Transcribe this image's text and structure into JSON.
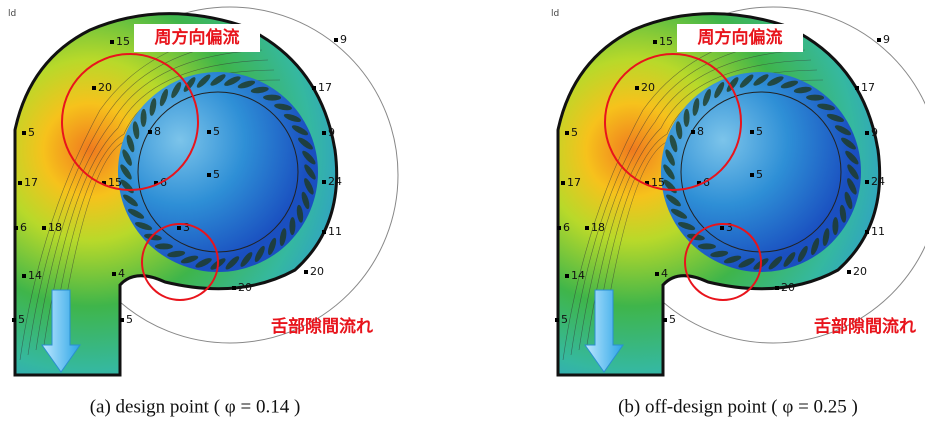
{
  "panels": [
    {
      "corner_label": "ld",
      "annotations": [
        "周方向偏流",
        "舌部隙間流れ"
      ],
      "contour_labels": [
        "15",
        "9",
        "20",
        "17",
        "8",
        "5",
        "9",
        "5",
        "5",
        "24",
        "17",
        "15",
        "6",
        "3",
        "11",
        "6",
        "18",
        "14",
        "4",
        "20",
        "20",
        "5",
        "5"
      ],
      "caption": "(a) design point ( φ = 0.14 )"
    },
    {
      "corner_label": "ld",
      "annotations": [
        "周方向偏流",
        "舌部隙間流れ"
      ],
      "contour_labels": [
        "15",
        "9",
        "20",
        "17",
        "8",
        "5",
        "9",
        "5",
        "5",
        "24",
        "17",
        "15",
        "6",
        "3",
        "11",
        "6",
        "18",
        "14",
        "4",
        "20",
        "20",
        "5",
        "5"
      ],
      "caption": "(b) off-design point ( φ = 0.25 )"
    }
  ]
}
